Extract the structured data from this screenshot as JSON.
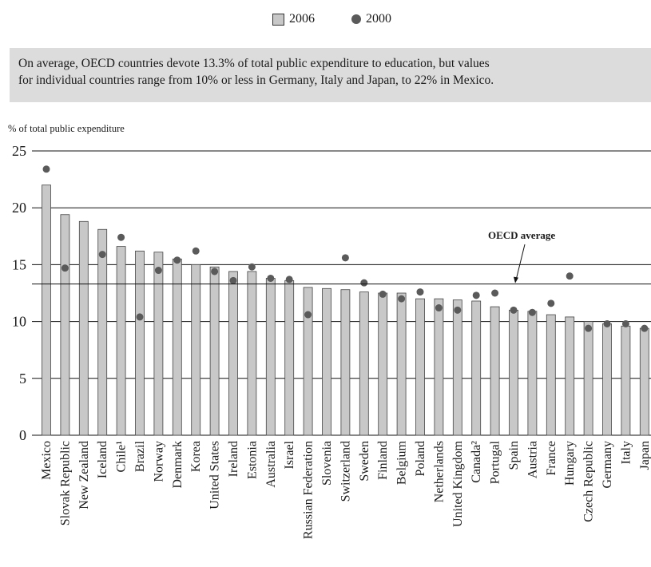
{
  "legend": {
    "bar_label": "2006",
    "dot_label": "2000"
  },
  "note": {
    "line1": "On average, OECD countries devote 13.3% of total public expenditure to education, but values",
    "line2": "for individual countries range from 10% or less in Germany, Italy and Japan, to 22% in Mexico."
  },
  "colors": {
    "bar": "#c8c8c8",
    "bar_edge": "#444444",
    "dot": "#5a5a5a",
    "note_bg": "#dcdcdc"
  },
  "chart_data": {
    "type": "bar",
    "ylabel": "% of total public expenditure",
    "ylim": [
      0,
      25
    ],
    "yticks": [
      0,
      5,
      10,
      15,
      20,
      25
    ],
    "grid": true,
    "legend_position": "top-center",
    "categories": [
      "Mexico",
      "Slovak Republic",
      "New Zealand",
      "Iceland",
      "Chile¹",
      "Brazil",
      "Norway",
      "Denmark",
      "Korea",
      "United States",
      "Ireland",
      "Estonia",
      "Australia",
      "Israel",
      "Russian Federation",
      "Slovenia",
      "Switzerland",
      "Sweden",
      "Finland",
      "Belgium",
      "Poland",
      "Netherlands",
      "United Kingdom",
      "Canada²",
      "Portugal",
      "Spain",
      "Austria",
      "France",
      "Hungary",
      "Czech Republic",
      "Germany",
      "Italy",
      "Japan"
    ],
    "series": [
      {
        "name": "2006",
        "kind": "bar",
        "values": [
          22.0,
          19.4,
          18.8,
          18.1,
          16.6,
          16.2,
          16.1,
          15.5,
          15.0,
          14.8,
          14.4,
          14.4,
          13.8,
          13.6,
          13.0,
          12.9,
          12.8,
          12.6,
          12.5,
          12.5,
          12.0,
          12.0,
          11.9,
          11.8,
          11.3,
          11.0,
          10.9,
          10.6,
          10.4,
          10.0,
          9.8,
          9.6,
          9.4
        ]
      },
      {
        "name": "2000",
        "kind": "point",
        "values": [
          23.4,
          14.7,
          null,
          15.9,
          17.4,
          10.4,
          14.5,
          15.4,
          16.2,
          14.4,
          13.6,
          14.8,
          13.8,
          13.7,
          10.6,
          null,
          15.6,
          13.4,
          12.4,
          12.0,
          12.6,
          11.2,
          11.0,
          12.3,
          12.5,
          11.0,
          10.8,
          11.6,
          14.0,
          9.4,
          9.8,
          9.8,
          9.4
        ]
      }
    ],
    "reference_line": {
      "label": "OECD average",
      "value": 13.3
    }
  }
}
